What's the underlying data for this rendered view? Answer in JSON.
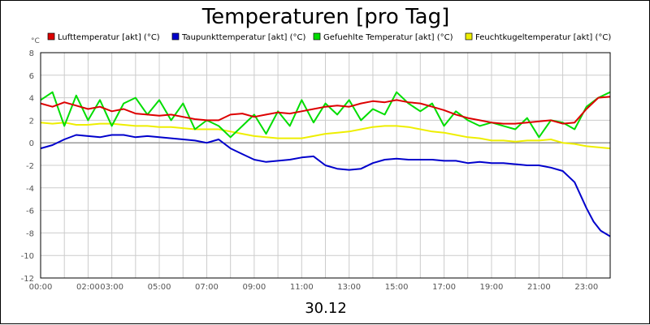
{
  "chart_data": {
    "type": "line",
    "title": "Temperaturen [pro Tag]",
    "date_label": "30.12",
    "unit_label": "°C",
    "ylim": [
      -12,
      8
    ],
    "yticks": [
      8,
      6,
      4,
      2,
      0,
      -2,
      -4,
      -6,
      -8,
      -10,
      -12
    ],
    "xlim": [
      0,
      24
    ],
    "xticks": [
      {
        "hour": 0,
        "label": "00:00"
      },
      {
        "hour": 2,
        "label": "02:00"
      },
      {
        "hour": 3,
        "label": "03:00"
      },
      {
        "hour": 5,
        "label": "05:00"
      },
      {
        "hour": 7,
        "label": "07:00"
      },
      {
        "hour": 9,
        "label": "09:00"
      },
      {
        "hour": 11,
        "label": "11:00"
      },
      {
        "hour": 13,
        "label": "13:00"
      },
      {
        "hour": 15,
        "label": "15:00"
      },
      {
        "hour": 17,
        "label": "17:00"
      },
      {
        "hour": 19,
        "label": "19:00"
      },
      {
        "hour": 21,
        "label": "21:00"
      },
      {
        "hour": 23,
        "label": "23:00"
      }
    ],
    "grid": true,
    "legend_position": "top",
    "series": [
      {
        "name": "Lufttemperatur [akt] (°C)",
        "color": "#dd0000",
        "x": [
          0,
          0.5,
          1,
          1.5,
          2,
          2.5,
          3,
          3.5,
          4,
          4.5,
          5,
          5.5,
          6,
          6.5,
          7,
          7.5,
          8,
          8.5,
          9,
          9.5,
          10,
          10.5,
          11,
          11.5,
          12,
          12.5,
          13,
          13.5,
          14,
          14.5,
          15,
          15.5,
          16,
          16.5,
          17,
          17.5,
          18,
          18.5,
          19,
          19.5,
          20,
          20.5,
          21,
          21.5,
          22,
          22.5,
          23,
          23.5,
          24
        ],
        "values": [
          3.5,
          3.2,
          3.6,
          3.3,
          3.0,
          3.2,
          2.8,
          3.0,
          2.6,
          2.5,
          2.4,
          2.5,
          2.3,
          2.1,
          2.0,
          2.0,
          2.5,
          2.6,
          2.3,
          2.5,
          2.7,
          2.6,
          2.8,
          3.0,
          3.2,
          3.3,
          3.2,
          3.5,
          3.7,
          3.6,
          3.8,
          3.6,
          3.5,
          3.2,
          2.9,
          2.5,
          2.2,
          2.0,
          1.8,
          1.7,
          1.7,
          1.8,
          1.9,
          2.0,
          1.7,
          1.8,
          3.0,
          4.0,
          4.1
        ]
      },
      {
        "name": "Taupunkttemperatur [akt] (°C)",
        "color": "#0000cc",
        "x": [
          0,
          0.5,
          1,
          1.5,
          2,
          2.5,
          3,
          3.5,
          4,
          4.5,
          5,
          5.5,
          6,
          6.5,
          7,
          7.5,
          8,
          8.5,
          9,
          9.5,
          10,
          10.5,
          11,
          11.5,
          12,
          12.5,
          13,
          13.5,
          14,
          14.5,
          15,
          15.5,
          16,
          16.5,
          17,
          17.5,
          18,
          18.5,
          19,
          19.5,
          20,
          20.5,
          21,
          21.5,
          22,
          22.5,
          23,
          23.3,
          23.6,
          24
        ],
        "values": [
          -0.5,
          -0.2,
          0.3,
          0.7,
          0.6,
          0.5,
          0.7,
          0.7,
          0.5,
          0.6,
          0.5,
          0.4,
          0.3,
          0.2,
          0.0,
          0.3,
          -0.5,
          -1.0,
          -1.5,
          -1.7,
          -1.6,
          -1.5,
          -1.3,
          -1.2,
          -2.0,
          -2.3,
          -2.4,
          -2.3,
          -1.8,
          -1.5,
          -1.4,
          -1.5,
          -1.5,
          -1.5,
          -1.6,
          -1.6,
          -1.8,
          -1.7,
          -1.8,
          -1.8,
          -1.9,
          -2.0,
          -2.0,
          -2.2,
          -2.5,
          -3.5,
          -5.8,
          -7.0,
          -7.8,
          -8.3
        ]
      },
      {
        "name": "Gefuehlte Temperatur [akt] (°C)",
        "color": "#00dd00",
        "x": [
          0,
          0.5,
          1,
          1.5,
          2,
          2.5,
          3,
          3.5,
          4,
          4.5,
          5,
          5.5,
          6,
          6.5,
          7,
          7.5,
          8,
          8.5,
          9,
          9.5,
          10,
          10.5,
          11,
          11.5,
          12,
          12.5,
          13,
          13.5,
          14,
          14.5,
          15,
          15.5,
          16,
          16.5,
          17,
          17.5,
          18,
          18.5,
          19,
          19.5,
          20,
          20.5,
          21,
          21.5,
          22,
          22.5,
          23,
          23.5,
          24
        ],
        "values": [
          3.8,
          4.5,
          1.5,
          4.2,
          2.0,
          3.8,
          1.5,
          3.5,
          4.0,
          2.5,
          3.8,
          2.0,
          3.5,
          1.2,
          2.0,
          1.5,
          0.5,
          1.5,
          2.5,
          0.8,
          2.8,
          1.5,
          3.8,
          1.8,
          3.5,
          2.5,
          3.8,
          2.0,
          3.0,
          2.5,
          4.5,
          3.5,
          2.8,
          3.5,
          1.5,
          2.8,
          2.0,
          1.5,
          1.8,
          1.5,
          1.2,
          2.2,
          0.5,
          2.0,
          1.8,
          1.2,
          3.2,
          4.0,
          4.5
        ]
      },
      {
        "name": "Feuchtkugeltemperatur [akt] (°C)",
        "color": "#eeee00",
        "x": [
          0,
          0.5,
          1,
          1.5,
          2,
          2.5,
          3,
          3.5,
          4,
          4.5,
          5,
          5.5,
          6,
          6.5,
          7,
          7.5,
          8,
          8.5,
          9,
          9.5,
          10,
          10.5,
          11,
          11.5,
          12,
          12.5,
          13,
          13.5,
          14,
          14.5,
          15,
          15.5,
          16,
          16.5,
          17,
          17.5,
          18,
          18.5,
          19,
          19.5,
          20,
          20.5,
          21,
          21.5,
          22,
          22.5,
          23,
          23.5,
          24
        ],
        "values": [
          1.8,
          1.7,
          1.8,
          1.6,
          1.6,
          1.7,
          1.7,
          1.6,
          1.5,
          1.5,
          1.4,
          1.4,
          1.3,
          1.2,
          1.2,
          1.2,
          1.0,
          0.8,
          0.6,
          0.5,
          0.4,
          0.4,
          0.4,
          0.6,
          0.8,
          0.9,
          1.0,
          1.2,
          1.4,
          1.5,
          1.5,
          1.4,
          1.2,
          1.0,
          0.9,
          0.7,
          0.5,
          0.4,
          0.2,
          0.2,
          0.1,
          0.2,
          0.2,
          0.3,
          0.0,
          -0.1,
          -0.3,
          -0.4,
          -0.5
        ]
      }
    ]
  }
}
